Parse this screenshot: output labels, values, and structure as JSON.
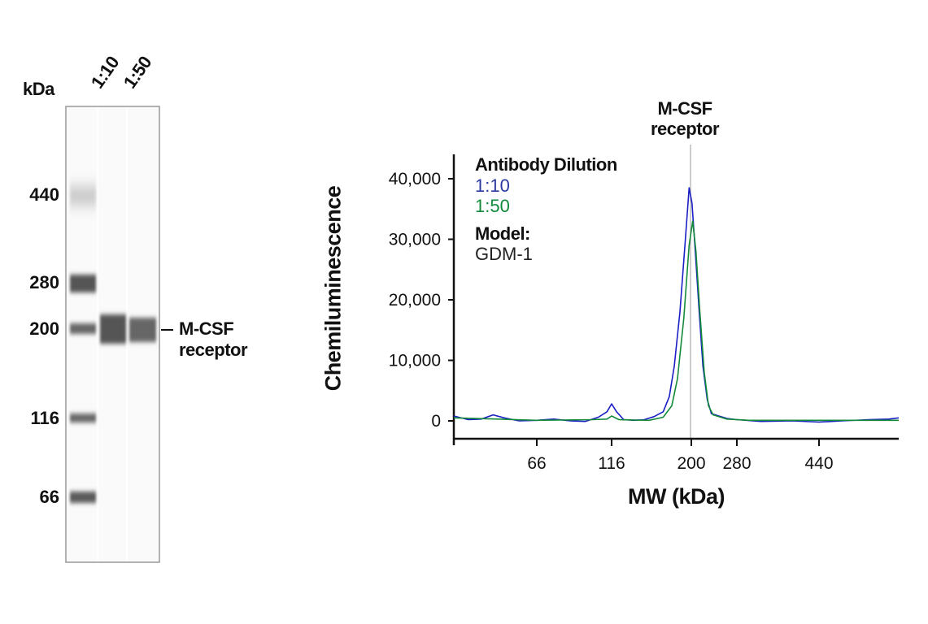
{
  "gel": {
    "unit_label": "kDa",
    "lane_labels": [
      "1:10",
      "1:50"
    ],
    "ladder": [
      "440",
      "280",
      "200",
      "116",
      "66"
    ],
    "band_label": [
      "M-CSF",
      "receptor"
    ]
  },
  "chart_data": {
    "type": "line",
    "annotation": [
      "M-CSF",
      "receptor"
    ],
    "annotation_x": 200,
    "xlabel": "MW (kDa)",
    "ylabel": "Chemiluminescence",
    "x_ticks": [
      66,
      116,
      200,
      280,
      440
    ],
    "x_tick_labels": [
      "66",
      "116",
      "200",
      "280",
      "440"
    ],
    "x_scale": "log",
    "xlim": [
      36,
      687
    ],
    "y_ticks": [
      0,
      10000,
      20000,
      30000,
      40000
    ],
    "y_tick_labels": [
      "0",
      "10,000",
      "20,000",
      "30,000",
      "40,000"
    ],
    "ylim": [
      -3000,
      44000
    ],
    "legend_title": "Antibody Dilution",
    "legend_placement": "top-left",
    "model_label": "Model:",
    "model_value": "GDM-1",
    "series": [
      {
        "name": "1:10",
        "color": "#1a1fc4",
        "x": [
          36,
          40,
          44,
          48,
          52,
          58,
          66,
          75,
          85,
          95,
          105,
          112,
          116,
          120,
          126,
          135,
          145,
          155,
          165,
          172,
          178,
          185,
          192,
          197,
          201,
          206,
          212,
          218,
          225,
          232,
          245,
          260,
          280,
          320,
          380,
          440,
          500,
          580,
          650,
          687
        ],
        "y": [
          800,
          200,
          300,
          1000,
          500,
          0,
          100,
          300,
          0,
          -100,
          600,
          1500,
          2800,
          1500,
          200,
          100,
          200,
          700,
          1500,
          4000,
          9000,
          18000,
          30000,
          38500,
          36000,
          28000,
          18000,
          9000,
          3500,
          1200,
          800,
          400,
          200,
          -100,
          0,
          -200,
          0,
          200,
          300,
          500
        ]
      },
      {
        "name": "1:50",
        "color": "#138a3a",
        "x": [
          36,
          50,
          66,
          100,
          112,
          116,
          122,
          150,
          165,
          175,
          182,
          190,
          197,
          202,
          207,
          213,
          220,
          227,
          235,
          260,
          300,
          687
        ],
        "y": [
          500,
          300,
          100,
          200,
          300,
          800,
          200,
          100,
          600,
          2500,
          7000,
          17000,
          29000,
          33000,
          28000,
          18000,
          8000,
          2500,
          1000,
          300,
          100,
          100
        ]
      }
    ]
  }
}
